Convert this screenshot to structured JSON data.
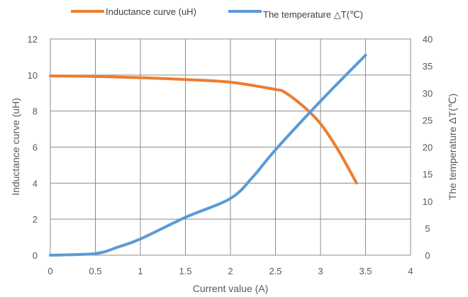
{
  "chart_data": {
    "type": "line",
    "xlabel": "Current value (A)",
    "ylabel": "Inductance curve (uH)",
    "y2label": "The temperature ΔT(℃)",
    "xlim": [
      0,
      4
    ],
    "ylim": [
      0,
      12
    ],
    "y2lim": [
      0,
      40
    ],
    "xticks": [
      "0",
      "0.5",
      "1",
      "1.5",
      "2",
      "2.5",
      "3",
      "3.5",
      "4"
    ],
    "yticks": [
      "0",
      "2",
      "4",
      "6",
      "8",
      "10",
      "12"
    ],
    "y2ticks": [
      "0",
      "5",
      "10",
      "15",
      "20",
      "25",
      "30",
      "35",
      "40"
    ],
    "grid": true,
    "legend_position": "top",
    "series": [
      {
        "name": "Inductance curve (uH)",
        "axis": "left",
        "color": "#ED7D31",
        "x": [
          0,
          0.5,
          1,
          1.5,
          2,
          2.5,
          2.6,
          2.8,
          3.0,
          3.2,
          3.4
        ],
        "y": [
          9.95,
          9.92,
          9.85,
          9.75,
          9.6,
          9.2,
          9.05,
          8.3,
          7.3,
          5.8,
          4.0
        ]
      },
      {
        "name": "The temperature △T(℃)",
        "axis": "right",
        "color": "#5B9BD5",
        "x": [
          0,
          0.5,
          0.75,
          1,
          1.5,
          2,
          2.25,
          2.5,
          3,
          3.5
        ],
        "y": [
          0,
          0.3,
          1.5,
          3,
          7,
          10.5,
          14.5,
          19.5,
          28.5,
          37
        ]
      }
    ]
  }
}
